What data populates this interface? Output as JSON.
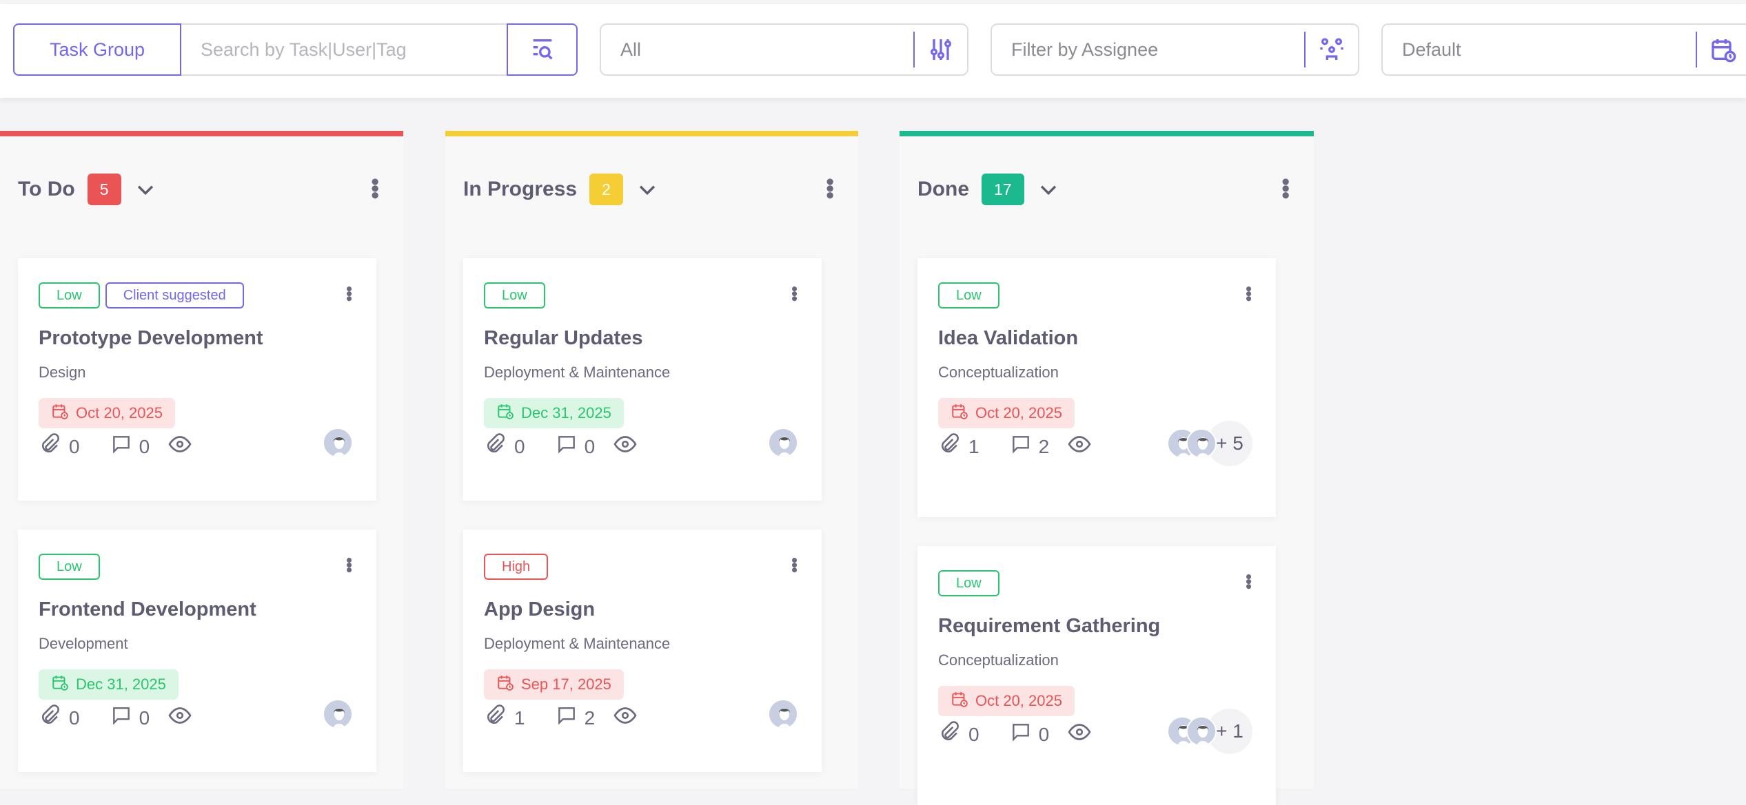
{
  "toolbar": {
    "task_group": "Task Group",
    "search_placeholder": "Search by Task|User|Tag",
    "status_filter": "All",
    "assignee_placeholder": "Filter by Assignee",
    "date_filter": "Default"
  },
  "colors": {
    "accent": "#7367f0",
    "todo": "#ea5455",
    "progress": "#f5cd34",
    "done": "#1cb98e",
    "low": "#28c76f",
    "high": "#ea5455"
  },
  "columns": [
    {
      "title": "To Do",
      "count": "5",
      "cards": [
        {
          "tags": [
            "Low",
            "Client suggested"
          ],
          "title": "Prototype Development",
          "group": "Design",
          "date": "Oct 20, 2025",
          "date_state": "overdue",
          "attachments": "0",
          "comments": "0",
          "more": ""
        },
        {
          "tags": [
            "Low"
          ],
          "title": "Frontend Development",
          "group": "Development",
          "date": "Dec 31, 2025",
          "date_state": "upcoming",
          "attachments": "0",
          "comments": "0",
          "more": ""
        }
      ]
    },
    {
      "title": "In Progress",
      "count": "2",
      "cards": [
        {
          "tags": [
            "Low"
          ],
          "title": "Regular Updates",
          "group": "Deployment & Maintenance",
          "date": "Dec 31, 2025",
          "date_state": "upcoming",
          "attachments": "0",
          "comments": "0",
          "more": ""
        },
        {
          "tags": [
            "High"
          ],
          "title": "App Design",
          "group": "Deployment & Maintenance",
          "date": "Sep 17, 2025",
          "date_state": "overdue",
          "attachments": "1",
          "comments": "2",
          "more": ""
        }
      ]
    },
    {
      "title": "Done",
      "count": "17",
      "cards": [
        {
          "tags": [
            "Low"
          ],
          "title": "Idea Validation",
          "group": "Conceptualization",
          "date": "Oct 20, 2025",
          "date_state": "overdue",
          "attachments": "1",
          "comments": "2",
          "more": "+ 5"
        },
        {
          "tags": [
            "Low"
          ],
          "title": "Requirement Gathering",
          "group": "Conceptualization",
          "date": "Oct 20, 2025",
          "date_state": "overdue",
          "attachments": "0",
          "comments": "0",
          "more": "+ 1"
        }
      ]
    }
  ]
}
